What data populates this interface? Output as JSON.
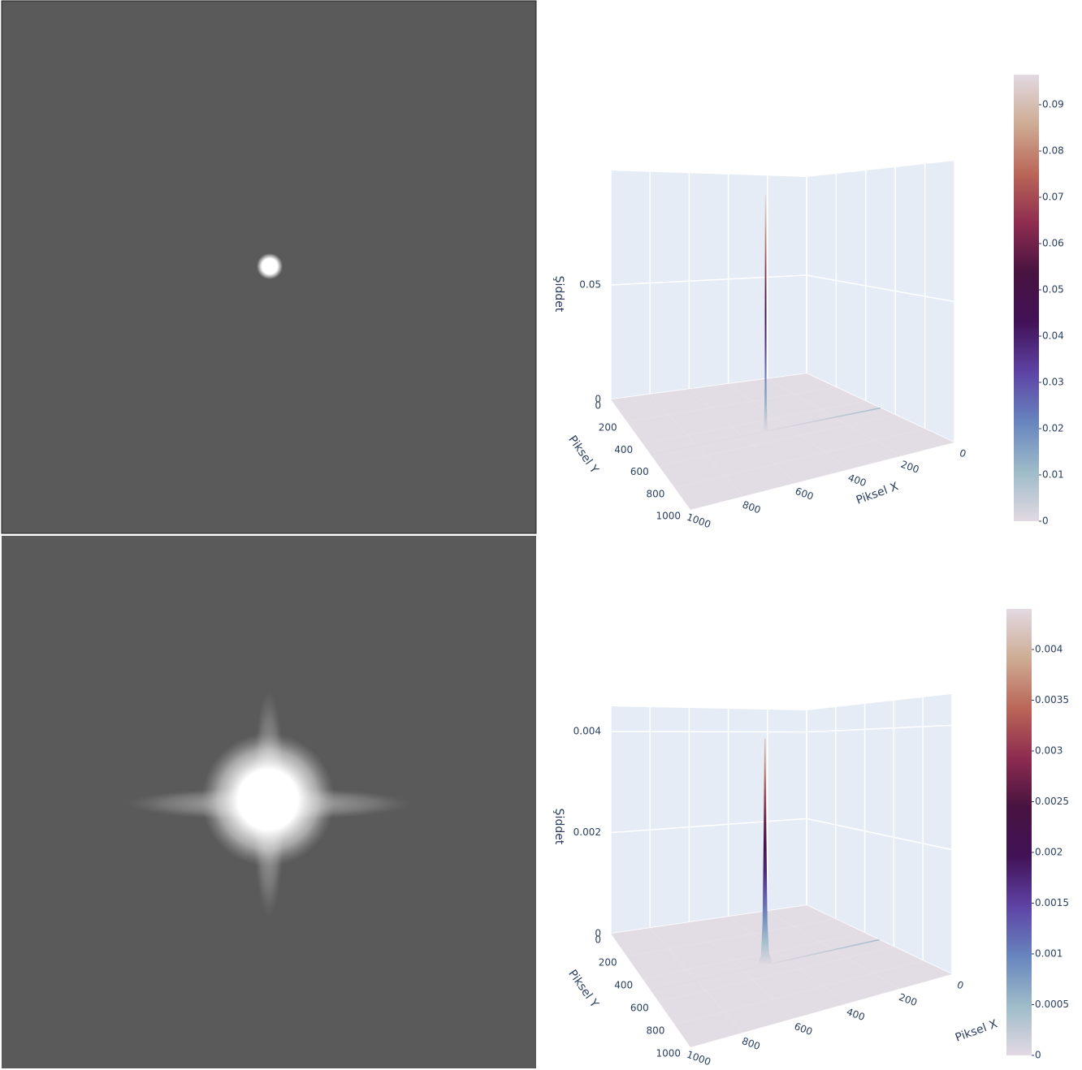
{
  "chart_data": [
    {
      "type": "surface",
      "x_label": "Piksel X",
      "y_label": "Piksel Y",
      "z_label": "Şiddet",
      "xlim": [
        0,
        1000
      ],
      "ylim": [
        0,
        1000
      ],
      "zlim": [
        0,
        0.1
      ],
      "xticks": [
        0,
        200,
        400,
        600,
        800,
        1000
      ],
      "yticks": [
        0,
        200,
        400,
        600,
        800,
        1000
      ],
      "zticks": [
        0,
        0.05
      ],
      "colorscale": [
        "#e2d9e2",
        "#9ebbc9",
        "#6785be",
        "#5e43a5",
        "#421257",
        "#471340",
        "#8e2c50",
        "#ba6657",
        "#ceac94",
        "#e2d9e2"
      ],
      "clim": [
        0,
        0.0965
      ],
      "cticks": [
        0,
        0.01,
        0.02,
        0.03,
        0.04,
        0.05,
        0.06,
        0.07,
        0.08,
        0.09
      ],
      "series": [
        {
          "x": [
            0,
            490,
            496,
            499,
            500,
            501,
            504,
            510,
            1000
          ],
          "y": [
            500,
            500,
            500,
            500,
            500,
            500,
            500,
            500,
            500
          ],
          "values": [
            0,
            0,
            0.003,
            0.02,
            0.097,
            0.02,
            0.003,
            0,
            0
          ]
        }
      ]
    },
    {
      "type": "surface",
      "x_label": "Piksel X",
      "y_label": "Piksel Y",
      "z_label": "Şiddet",
      "xlim": [
        0,
        1000
      ],
      "ylim": [
        0,
        1000
      ],
      "zlim": [
        0,
        0.0045
      ],
      "xticks": [
        0,
        200,
        400,
        600,
        800,
        1000
      ],
      "yticks": [
        0,
        200,
        400,
        600,
        800,
        1000
      ],
      "zticks": [
        0,
        0.002,
        0.004
      ],
      "colorscale": [
        "#e2d9e2",
        "#9ebbc9",
        "#6785be",
        "#5e43a5",
        "#421257",
        "#471340",
        "#8e2c50",
        "#ba6657",
        "#ceac94",
        "#e2d9e2"
      ],
      "clim": [
        0,
        0.0044
      ],
      "cticks": [
        0,
        0.0005,
        0.001,
        0.0015,
        0.002,
        0.0025,
        0.003,
        0.0035,
        0.004
      ],
      "series": [
        {
          "x": [
            0,
            470,
            485,
            492,
            497,
            500,
            503,
            508,
            515,
            530,
            1000
          ],
          "y": [
            500,
            500,
            500,
            500,
            500,
            500,
            500,
            500,
            500,
            500,
            500
          ],
          "values": [
            0,
            0,
            0.0002,
            0.0008,
            0.0025,
            0.0042,
            0.0025,
            0.0008,
            0.0002,
            0,
            0
          ]
        }
      ]
    }
  ]
}
